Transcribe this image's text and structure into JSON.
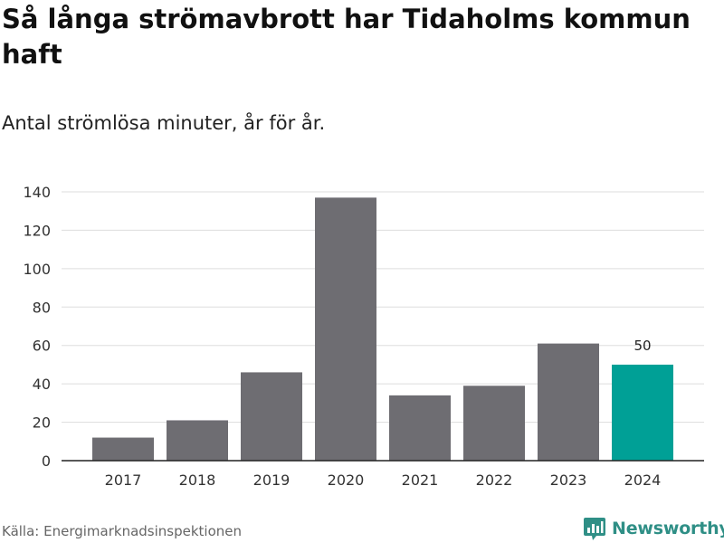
{
  "header": {
    "title": "Så långa strömavbrott har Tidaholms kommun haft",
    "subtitle": "Antal strömlösa minuter, år för år."
  },
  "footer": {
    "source": "Källa: Energimarknadsinspektionen",
    "brand": "Newsworthy",
    "brand_icon": "bar-chart-logo-icon"
  },
  "colors": {
    "bar": "#6e6d72",
    "highlight": "#00a096",
    "grid": "#dddddd",
    "brand": "#2f8f86"
  },
  "chart_data": {
    "type": "bar",
    "categories": [
      "2017",
      "2018",
      "2019",
      "2020",
      "2021",
      "2022",
      "2023",
      "2024"
    ],
    "values": [
      12,
      21,
      46,
      137,
      34,
      39,
      61,
      50
    ],
    "highlight_index": 7,
    "data_labels": [
      {
        "index": 7,
        "text": "50"
      }
    ],
    "title": "Så långa strömavbrott har Tidaholms kommun haft",
    "subtitle": "Antal strömlösa minuter, år för år.",
    "xlabel": "",
    "ylabel": "",
    "ylim": [
      0,
      140
    ],
    "yticks": [
      0,
      20,
      40,
      60,
      80,
      100,
      120,
      140
    ],
    "grid": true,
    "legend": "none"
  }
}
